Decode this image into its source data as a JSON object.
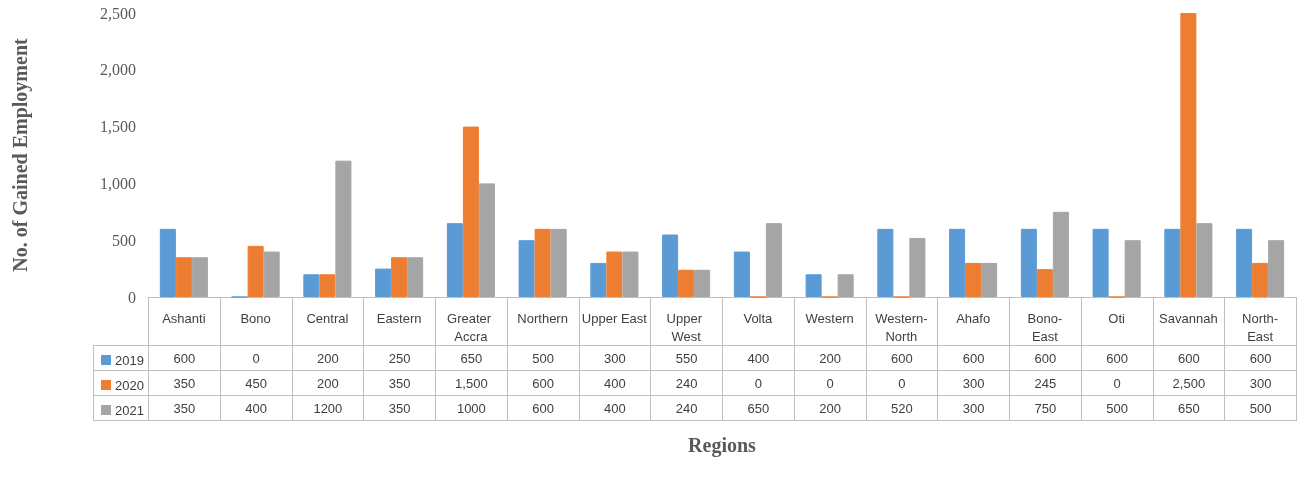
{
  "chart_data": {
    "type": "bar",
    "xlabel": "Regions",
    "ylabel": "No. of Gained Employment",
    "categories": [
      "Ashanti",
      "Bono",
      "Central",
      "Eastern",
      "Greater Accra",
      "Northern",
      "Upper East",
      "Upper West",
      "Volta",
      "Western",
      "Western-North",
      "Ahafo",
      "Bono-East",
      "Oti",
      "Savannah",
      "North-East"
    ],
    "series": [
      {
        "name": "2019",
        "color": "#5b9bd5",
        "values": [
          600,
          0,
          200,
          250,
          650,
          500,
          300,
          550,
          400,
          200,
          600,
          600,
          600,
          600,
          600,
          600
        ],
        "value_labels": [
          "600",
          "0",
          "200",
          "250",
          "650",
          "500",
          "300",
          "550",
          "400",
          "200",
          "600",
          "600",
          "600",
          "600",
          "600",
          "600"
        ]
      },
      {
        "name": "2020",
        "color": "#ed7d31",
        "values": [
          350,
          450,
          200,
          350,
          1500,
          600,
          400,
          240,
          0,
          0,
          0,
          300,
          245,
          0,
          2500,
          300
        ],
        "value_labels": [
          "350",
          "450",
          "200",
          "350",
          "1,500",
          "600",
          "400",
          "240",
          "0",
          "0",
          "0",
          "300",
          "245",
          "0",
          "2,500",
          "300"
        ]
      },
      {
        "name": "2021",
        "color": "#a5a5a5",
        "values": [
          350,
          400,
          1200,
          350,
          1000,
          600,
          400,
          240,
          650,
          200,
          520,
          300,
          750,
          500,
          650,
          500
        ],
        "value_labels": [
          "350",
          "400",
          "1200",
          "350",
          "1000",
          "600",
          "400",
          "240",
          "650",
          "200",
          "520",
          "300",
          "750",
          "500",
          "650",
          "500"
        ]
      }
    ],
    "ylim": [
      0,
      2500
    ],
    "yticks": [
      0,
      500,
      {
        "value": 1000,
        "label": "1,000"
      },
      {
        "value": 1500,
        "label": "1,500"
      },
      {
        "value": 2000,
        "label": "2,000"
      },
      {
        "value": 2500,
        "label": "2,500"
      }
    ],
    "grid": false,
    "legend": "bottom left"
  }
}
